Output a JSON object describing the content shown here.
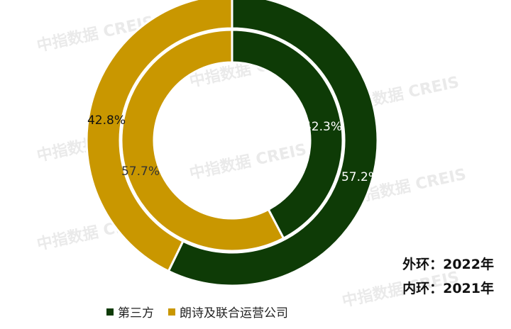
{
  "chart_data": {
    "type": "pie",
    "subtype": "double-donut",
    "categories": [
      "第三方",
      "朗诗及联合运营公司"
    ],
    "colors": [
      "#0e3b06",
      "#c99700"
    ],
    "series": [
      {
        "ring": "outer",
        "values": [
          57.2,
          42.8
        ],
        "labels": [
          "57.2%",
          "42.8%"
        ]
      },
      {
        "ring": "inner",
        "values": [
          42.3,
          57.7
        ],
        "labels": [
          "42.3%",
          "57.7%"
        ]
      }
    ],
    "annotations": [
      "外环：2022年",
      "内环：2021年"
    ],
    "legend_position": "bottom"
  },
  "watermark": "中指数据 CREIS"
}
